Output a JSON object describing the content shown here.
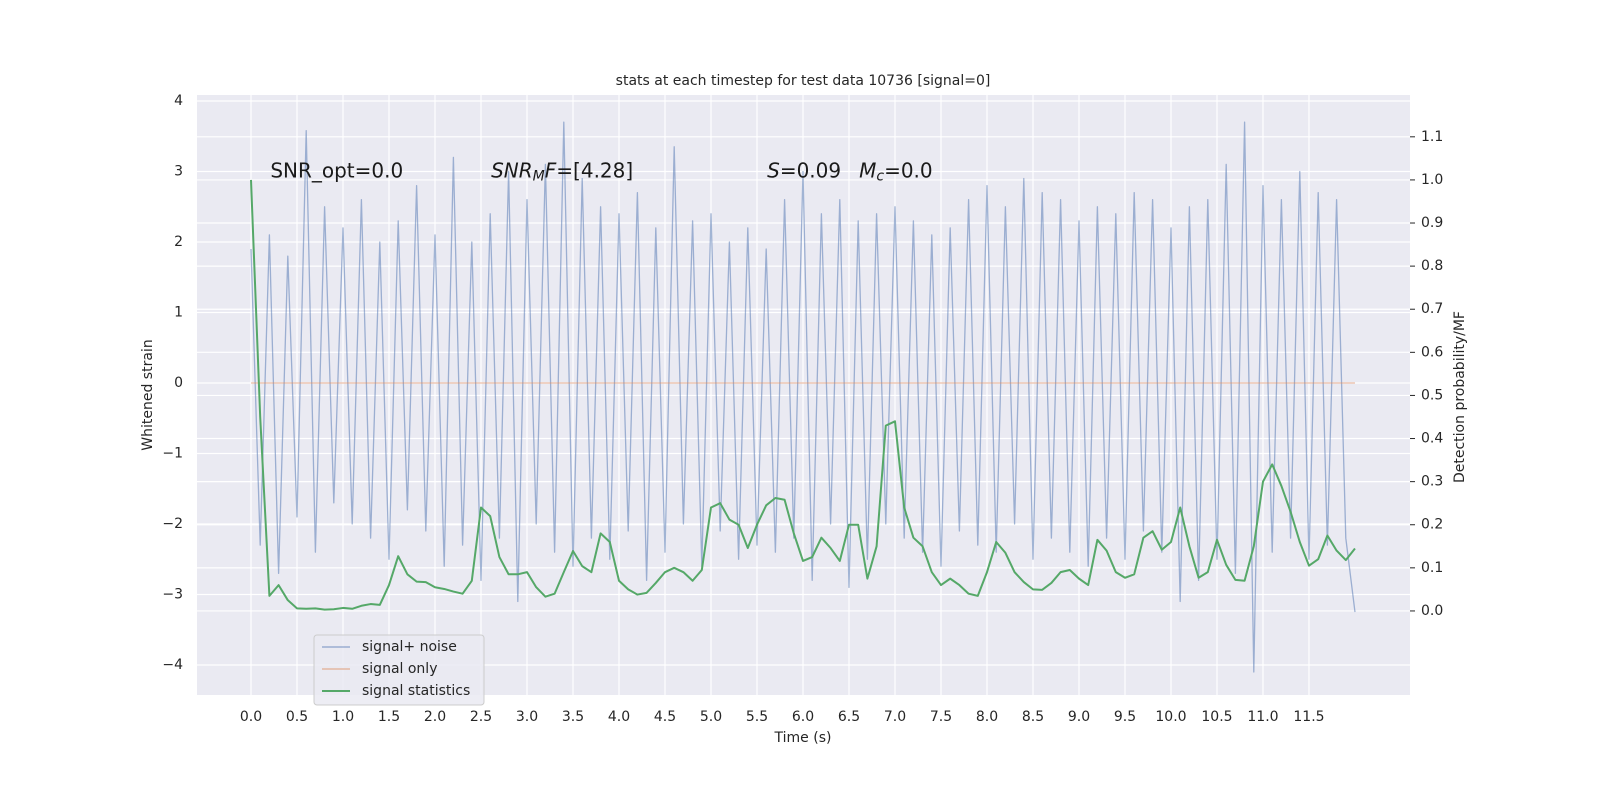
{
  "chart_data": {
    "type": "line",
    "title": "stats at each timestep for test data 10736 [signal=0]",
    "xlabel": "Time (s)",
    "ylabel": "Whitened strain",
    "y2label": "Detection probability/MF",
    "x": [
      0,
      0.1,
      0.2,
      0.3,
      0.4,
      0.5,
      0.6,
      0.7,
      0.8,
      0.9,
      1,
      1.1,
      1.2,
      1.3,
      1.4,
      1.5,
      1.6,
      1.7,
      1.8,
      1.9,
      2,
      2.1,
      2.2,
      2.3,
      2.4,
      2.5,
      2.6,
      2.7,
      2.8,
      2.9,
      3,
      3.1,
      3.2,
      3.3,
      3.4,
      3.5,
      3.6,
      3.7,
      3.8,
      3.9,
      4,
      4.1,
      4.2,
      4.3,
      4.4,
      4.5,
      4.6,
      4.7,
      4.8,
      4.9,
      5,
      5.1,
      5.2,
      5.3,
      5.4,
      5.5,
      5.6,
      5.7,
      5.8,
      5.9,
      6,
      6.1,
      6.2,
      6.3,
      6.4,
      6.5,
      6.6,
      6.7,
      6.8,
      6.9,
      7,
      7.1,
      7.2,
      7.3,
      7.4,
      7.5,
      7.6,
      7.7,
      7.8,
      7.9,
      8,
      8.1,
      8.2,
      8.3,
      8.4,
      8.5,
      8.6,
      8.7,
      8.8,
      8.9,
      9,
      9.1,
      9.2,
      9.3,
      9.4,
      9.5,
      9.6,
      9.7,
      9.8,
      9.9,
      10,
      10.1,
      10.2,
      10.3,
      10.4,
      10.5,
      10.6,
      10.7,
      10.8,
      10.9,
      11,
      11.1,
      11.2,
      11.3,
      11.4,
      11.5,
      11.6,
      11.7,
      11.8,
      11.9,
      12
    ],
    "series": [
      {
        "name": "signal+ noise",
        "color": "#4c72b0",
        "opacity": 0.5,
        "axis": "y",
        "values": [
          1.9,
          -2.3,
          2.1,
          -2.7,
          1.8,
          -1.9,
          3.58,
          -2.4,
          2.5,
          -1.7,
          2.2,
          -2.0,
          2.6,
          -2.2,
          2.0,
          -2.5,
          2.3,
          -1.8,
          2.8,
          -2.1,
          2.1,
          -2.6,
          3.2,
          -2.3,
          2.0,
          -2.8,
          2.4,
          -2.2,
          3.0,
          -3.1,
          2.6,
          -2.0,
          3.1,
          -2.4,
          3.7,
          -2.6,
          2.9,
          -2.2,
          2.5,
          -2.5,
          2.4,
          -2.1,
          2.7,
          -2.8,
          2.2,
          -2.4,
          3.35,
          -2.0,
          2.3,
          -2.6,
          2.4,
          -2.1,
          2.0,
          -2.5,
          2.2,
          -2.3,
          1.9,
          -2.4,
          2.6,
          -2.2,
          3.0,
          -2.8,
          2.4,
          -2.0,
          2.6,
          -2.9,
          2.3,
          -2.5,
          2.4,
          -2.0,
          2.5,
          -2.2,
          2.3,
          -2.4,
          2.1,
          -2.6,
          2.2,
          -2.1,
          2.6,
          -2.3,
          2.8,
          -2.4,
          2.5,
          -2.0,
          2.9,
          -2.5,
          2.7,
          -2.2,
          2.6,
          -2.4,
          2.3,
          -2.6,
          2.5,
          -2.2,
          2.4,
          -2.5,
          2.7,
          -2.1,
          2.6,
          -2.4,
          2.2,
          -3.1,
          2.5,
          -2.8,
          2.6,
          -2.5,
          3.1,
          -2.7,
          3.7,
          -4.1,
          2.8,
          -2.4,
          2.6,
          -2.2,
          3.0,
          -2.5,
          2.7,
          -2.3,
          2.6,
          -2.2,
          -3.25
        ]
      },
      {
        "name": "signal only",
        "color": "#dd8452",
        "opacity": 0.5,
        "axis": "y",
        "values": [
          0,
          0,
          0,
          0,
          0,
          0,
          0,
          0,
          0,
          0,
          0,
          0,
          0,
          0,
          0,
          0,
          0,
          0,
          0,
          0,
          0,
          0,
          0,
          0,
          0,
          0,
          0,
          0,
          0,
          0,
          0,
          0,
          0,
          0,
          0,
          0,
          0,
          0,
          0,
          0,
          0,
          0,
          0,
          0,
          0,
          0,
          0,
          0,
          0,
          0,
          0,
          0,
          0,
          0,
          0,
          0,
          0,
          0,
          0,
          0,
          0,
          0,
          0,
          0,
          0,
          0,
          0,
          0,
          0,
          0,
          0,
          0,
          0,
          0,
          0,
          0,
          0,
          0,
          0,
          0,
          0,
          0,
          0,
          0,
          0,
          0,
          0,
          0,
          0,
          0,
          0,
          0,
          0,
          0,
          0,
          0,
          0,
          0,
          0,
          0,
          0,
          0,
          0,
          0,
          0,
          0,
          0,
          0,
          0,
          0,
          0,
          0,
          0,
          0,
          0,
          0,
          0,
          0,
          0,
          0,
          0
        ]
      },
      {
        "name": "signal statistics",
        "color": "#55a868",
        "opacity": 1,
        "axis": "y2",
        "values": [
          1.0,
          0.45,
          0.035,
          0.06,
          0.025,
          0.006,
          0.005,
          0.006,
          0.003,
          0.004,
          0.007,
          0.005,
          0.012,
          0.016,
          0.014,
          0.06,
          0.127,
          0.085,
          0.068,
          0.067,
          0.055,
          0.051,
          0.045,
          0.04,
          0.07,
          0.24,
          0.22,
          0.125,
          0.085,
          0.085,
          0.09,
          0.055,
          0.033,
          0.04,
          0.09,
          0.139,
          0.104,
          0.09,
          0.18,
          0.16,
          0.07,
          0.05,
          0.038,
          0.042,
          0.065,
          0.09,
          0.1,
          0.09,
          0.07,
          0.095,
          0.24,
          0.25,
          0.212,
          0.2,
          0.146,
          0.2,
          0.245,
          0.262,
          0.258,
          0.18,
          0.116,
          0.125,
          0.17,
          0.146,
          0.116,
          0.2,
          0.2,
          0.075,
          0.15,
          0.43,
          0.44,
          0.24,
          0.17,
          0.15,
          0.09,
          0.06,
          0.075,
          0.06,
          0.04,
          0.035,
          0.09,
          0.16,
          0.135,
          0.09,
          0.067,
          0.05,
          0.049,
          0.065,
          0.09,
          0.095,
          0.075,
          0.06,
          0.165,
          0.14,
          0.09,
          0.077,
          0.085,
          0.17,
          0.185,
          0.142,
          0.16,
          0.24,
          0.15,
          0.077,
          0.09,
          0.165,
          0.107,
          0.072,
          0.07,
          0.15,
          0.3,
          0.34,
          0.29,
          0.23,
          0.16,
          0.105,
          0.12,
          0.175,
          0.14,
          0.118,
          0.145
        ]
      }
    ],
    "xlim": [
      -0.587,
      12.598
    ],
    "ylim": [
      -4.426,
      4.085
    ],
    "y2lim": [
      -0.195,
      1.197
    ],
    "xticks": [
      {
        "value": 0,
        "label": "0.0"
      },
      0.5,
      {
        "value": 1,
        "label": "1.0"
      },
      1.5,
      {
        "value": 2,
        "label": "2.0"
      },
      2.5,
      {
        "value": 3,
        "label": "3.0"
      },
      3.5,
      {
        "value": 4,
        "label": "4.0"
      },
      4.5,
      {
        "value": 5,
        "label": "5.0"
      },
      5.5,
      {
        "value": 6,
        "label": "6.0"
      },
      6.5,
      {
        "value": 7,
        "label": "7.0"
      },
      7.5,
      {
        "value": 8,
        "label": "8.0"
      },
      8.5,
      {
        "value": 9,
        "label": "9.0"
      },
      9.5,
      {
        "value": 10,
        "label": "10.0"
      },
      10.5,
      {
        "value": 11,
        "label": "11.0"
      },
      11.5
    ],
    "yticks": [
      {
        "value": -4,
        "label": "−4"
      },
      {
        "value": -3,
        "label": "−3"
      },
      {
        "value": -2,
        "label": "−2"
      },
      {
        "value": -1,
        "label": "−1"
      },
      0,
      1,
      2,
      3,
      4
    ],
    "y2ticks": [
      {
        "value": 0,
        "label": "0.0"
      },
      0.1,
      0.2,
      0.3,
      0.4,
      0.5,
      0.6,
      0.7,
      0.8,
      0.9,
      {
        "value": 1,
        "label": "1.0"
      },
      1.1
    ],
    "grid": true,
    "legend": "lower left",
    "annotations": [
      {
        "x": 0.21,
        "y": 3.0,
        "parts": [
          {
            "text": "SNR_opt=0.0"
          }
        ]
      },
      {
        "x": 2.61,
        "y": 3.0,
        "parts": [
          {
            "text": "SNR",
            "italic": true
          },
          {
            "text": "M",
            "italic": true,
            "sub": true
          },
          {
            "text": "F",
            "italic": true
          },
          {
            "text": "=[4.28]"
          }
        ]
      },
      {
        "x": 5.61,
        "y": 3.0,
        "parts": [
          {
            "text": "S",
            "italic": true
          },
          {
            "text": "=0.09"
          }
        ]
      },
      {
        "x": 6.61,
        "y": 3.0,
        "parts": [
          {
            "text": "M",
            "italic": true
          },
          {
            "text": "c",
            "italic": true,
            "sub": true
          },
          {
            "text": "=0.0"
          }
        ]
      }
    ]
  }
}
